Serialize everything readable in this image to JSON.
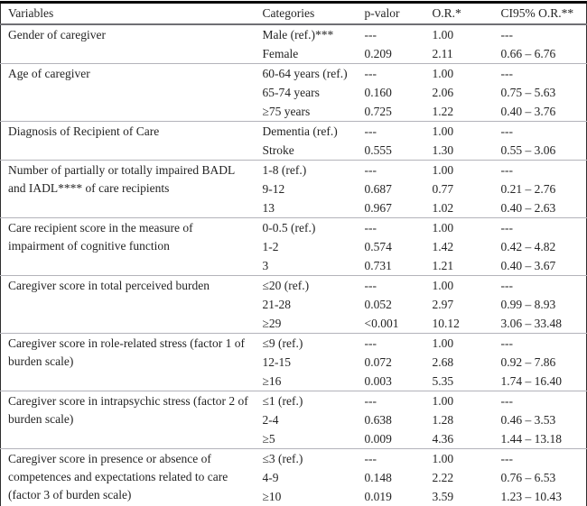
{
  "table": {
    "columns": [
      "Variables",
      "Categories",
      "p-valor",
      "O.R.*",
      "CI95% O.R.**"
    ],
    "sections": [
      {
        "variable": "Gender of caregiver",
        "rows": [
          {
            "category": "Male (ref.)***",
            "p": "---",
            "or": "1.00",
            "ci": "---"
          },
          {
            "category": "Female",
            "p": "0.209",
            "or": "2.11",
            "ci": "0.66 – 6.76"
          }
        ]
      },
      {
        "variable": "Age of caregiver",
        "rows": [
          {
            "category": "60-64 years (ref.)",
            "p": "---",
            "or": "1.00",
            "ci": "---"
          },
          {
            "category": "65-74 years",
            "p": "0.160",
            "or": "2.06",
            "ci": "0.75 – 5.63"
          },
          {
            "category": "≥75 years",
            "p": "0.725",
            "or": "1.22",
            "ci": "0.40 – 3.76"
          }
        ]
      },
      {
        "variable": "Diagnosis of Recipient of Care",
        "rows": [
          {
            "category": "Dementia (ref.)",
            "p": "---",
            "or": "1.00",
            "ci": "---"
          },
          {
            "category": "Stroke",
            "p": "0.555",
            "or": "1.30",
            "ci": "0.55 – 3.06"
          }
        ]
      },
      {
        "variable": "Number of partially or totally impaired BADL and IADL**** of care recipients",
        "rows": [
          {
            "category": "1-8 (ref.)",
            "p": "---",
            "or": "1.00",
            "ci": "---"
          },
          {
            "category": "9-12",
            "p": "0.687",
            "or": "0.77",
            "ci": "0.21 – 2.76"
          },
          {
            "category": "13",
            "p": "0.967",
            "or": "1.02",
            "ci": "0.40 – 2.63"
          }
        ]
      },
      {
        "variable": "Care recipient score in the measure of impairment of cognitive function",
        "rows": [
          {
            "category": "0-0.5 (ref.)",
            "p": "---",
            "or": "1.00",
            "ci": "---"
          },
          {
            "category": "1-2",
            "p": "0.574",
            "or": "1.42",
            "ci": "0.42 – 4.82"
          },
          {
            "category": "3",
            "p": "0.731",
            "or": "1.21",
            "ci": "0.40 – 3.67"
          }
        ]
      },
      {
        "variable": "Caregiver score in total perceived burden",
        "rows": [
          {
            "category": "≤20 (ref.)",
            "p": "---",
            "or": "1.00",
            "ci": "---"
          },
          {
            "category": "21-28",
            "p": "0.052",
            "or": "2.97",
            "ci": "0.99 – 8.93"
          },
          {
            "category": "≥29",
            "p": "<0.001",
            "or": "10.12",
            "ci": "3.06 – 33.48"
          }
        ]
      },
      {
        "variable": "Caregiver score in role-related stress (factor 1 of burden scale)",
        "rows": [
          {
            "category": "≤9 (ref.)",
            "p": "---",
            "or": "1.00",
            "ci": "---"
          },
          {
            "category": "12-15",
            "p": "0.072",
            "or": "2.68",
            "ci": "0.92 – 7.86"
          },
          {
            "category": "≥16",
            "p": "0.003",
            "or": "5.35",
            "ci": "1.74 – 16.40"
          }
        ]
      },
      {
        "variable": "Caregiver score in intrapsychic stress (factor 2 of burden scale)",
        "rows": [
          {
            "category": "≤1 (ref.)",
            "p": "---",
            "or": "1.00",
            "ci": "---"
          },
          {
            "category": "2-4",
            "p": "0.638",
            "or": "1.28",
            "ci": "0.46 – 3.53"
          },
          {
            "category": "≥5",
            "p": "0.009",
            "or": "4.36",
            "ci": "1.44 – 13.18"
          }
        ]
      },
      {
        "variable": "Caregiver score in presence or absence of competences and expectations related to care (factor 3 of burden scale)",
        "rows": [
          {
            "category": "≤3 (ref.)",
            "p": "---",
            "or": "1.00",
            "ci": "---"
          },
          {
            "category": "4-9",
            "p": "0.148",
            "or": "2.22",
            "ci": "0.76 – 6.53"
          },
          {
            "category": "≥10",
            "p": "0.019",
            "or": "3.59",
            "ci": "1.23 – 10.43"
          }
        ]
      }
    ]
  }
}
